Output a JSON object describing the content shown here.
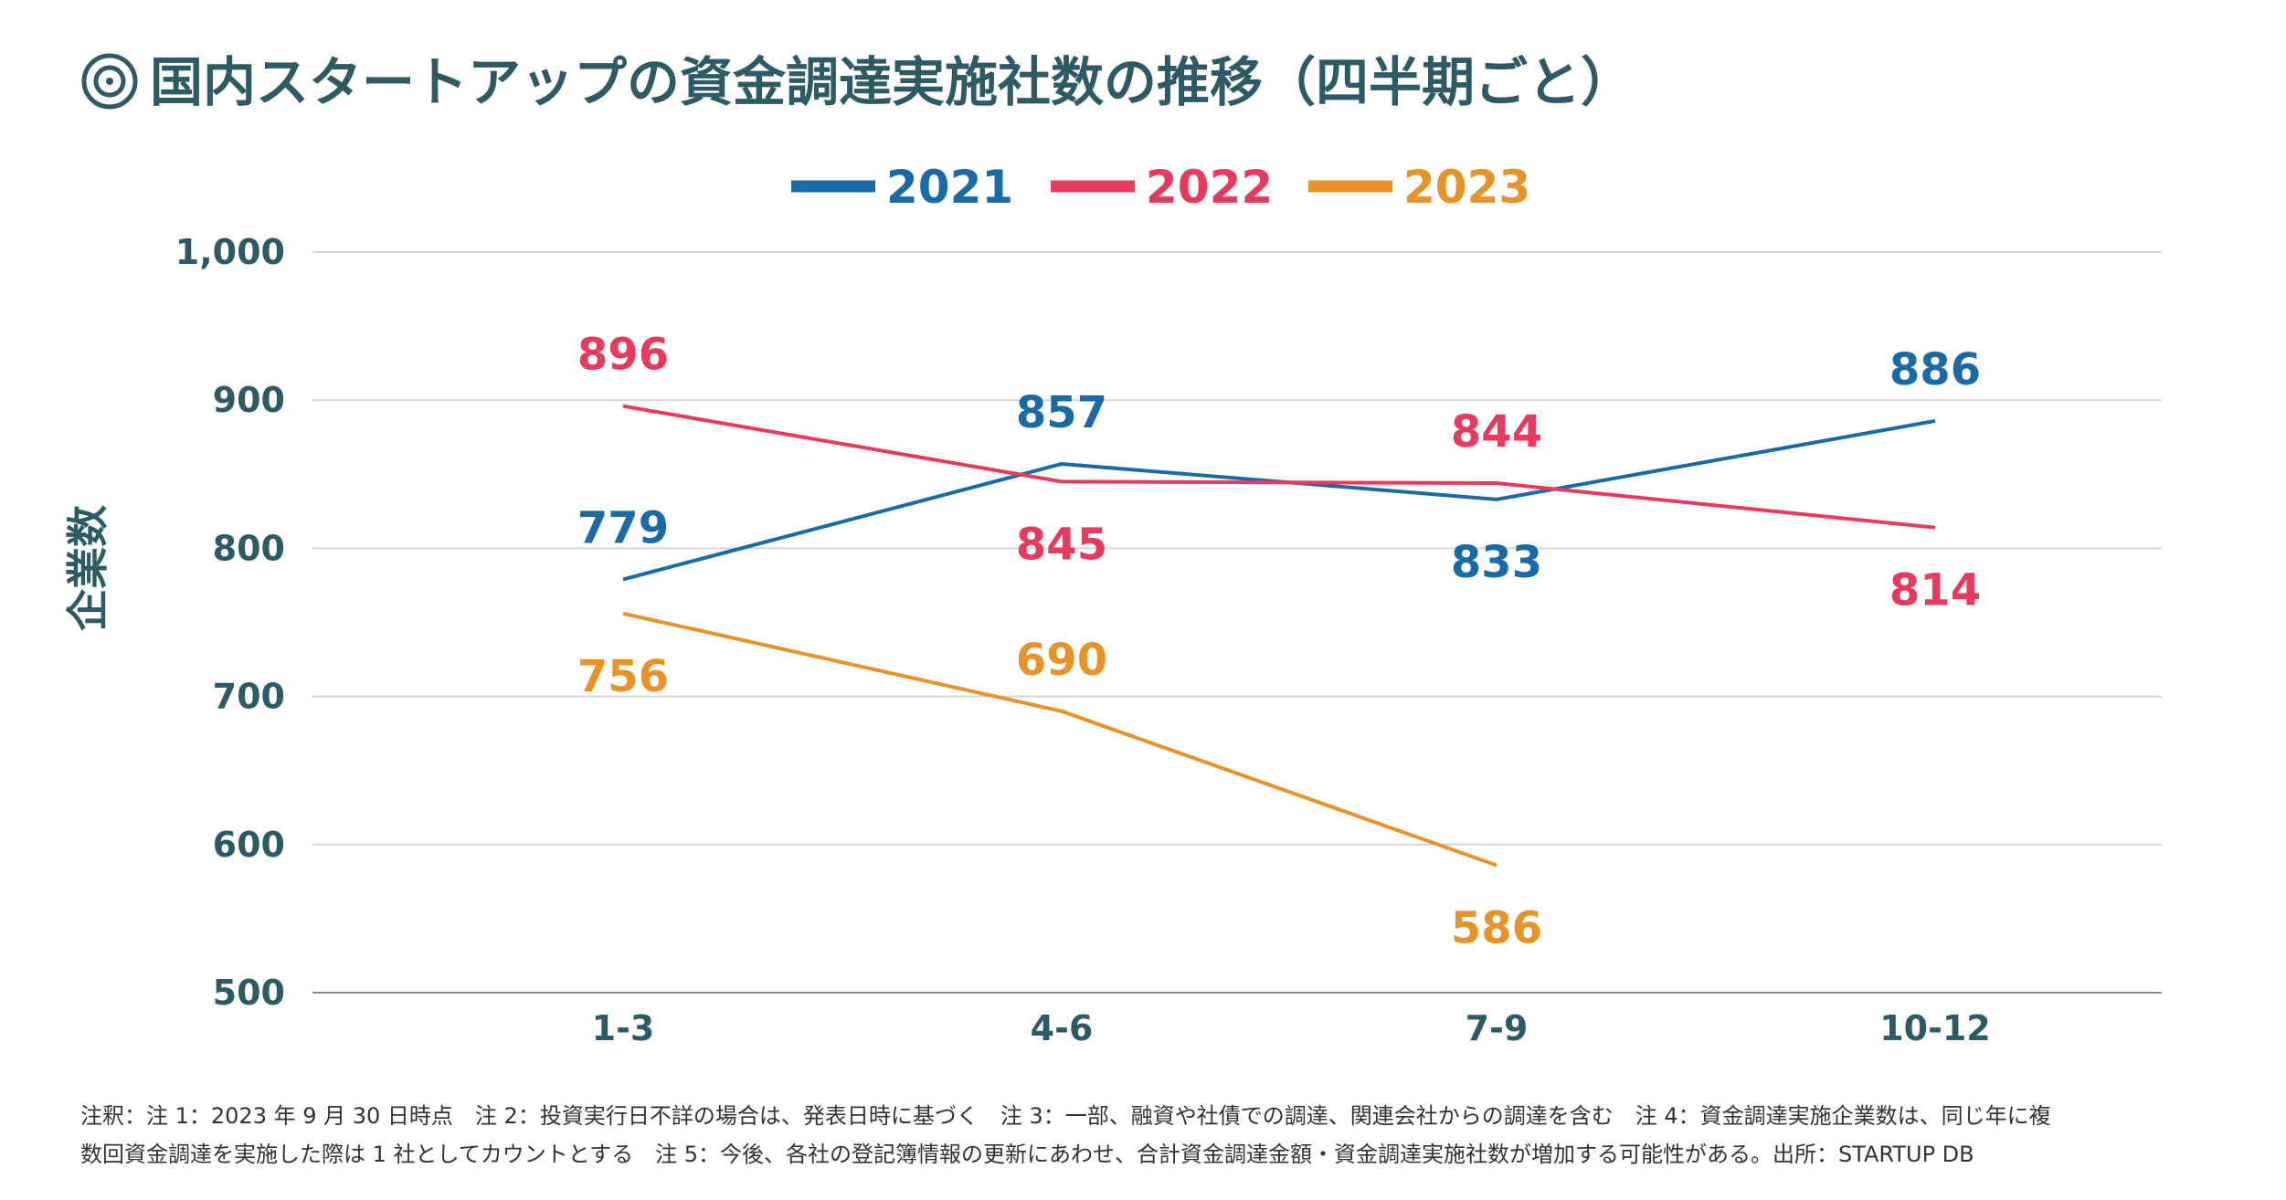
{
  "page": {
    "title": "国内スタートアップの資金調達実施社数の推移（四半期ごと）",
    "notes": [
      "注釈：注 1：2023 年 9 月 30 日時点　注 2：投資実行日不詳の場合は、発表日時に基づく　注 3：一部、融資や社債での調達、関連会社からの調達を含む　注 4：資金調達実施企業数は、同じ年に複",
      "数回資金調達を実施した際は 1 社としてカウントとする　注 5：今後、各社の登記簿情報の更新にあわせ、合計資金調達金額・資金調達実施社数が増加する可能性がある。出所：STARTUP DB"
    ]
  },
  "chart_data": {
    "type": "line",
    "title": "国内スタートアップの資金調達実施社数の推移（四半期ごと）",
    "categories": [
      "1-3",
      "4-6",
      "7-9",
      "10-12"
    ],
    "ylabel": "企業数",
    "xlabel": "",
    "ylim": [
      500,
      1000
    ],
    "yticks": [
      500,
      600,
      700,
      800,
      900,
      1000
    ],
    "ytick_labels": [
      "500",
      "600",
      "700",
      "800",
      "900",
      "1,000"
    ],
    "grid": true,
    "legend_position": "top-center",
    "series": [
      {
        "name": "2021",
        "color": "#1a6aa6",
        "values": [
          779,
          857,
          833,
          886
        ],
        "label_pos": [
          "above",
          "above",
          "below",
          "above"
        ]
      },
      {
        "name": "2022",
        "color": "#e8395f",
        "values": [
          896,
          845,
          844,
          814
        ],
        "label_pos": [
          "above",
          "below",
          "above",
          "below"
        ]
      },
      {
        "name": "2023",
        "color": "#e8922a",
        "values": [
          756,
          690,
          586,
          null
        ],
        "label_pos": [
          "below",
          "above",
          "below",
          null
        ]
      }
    ]
  }
}
